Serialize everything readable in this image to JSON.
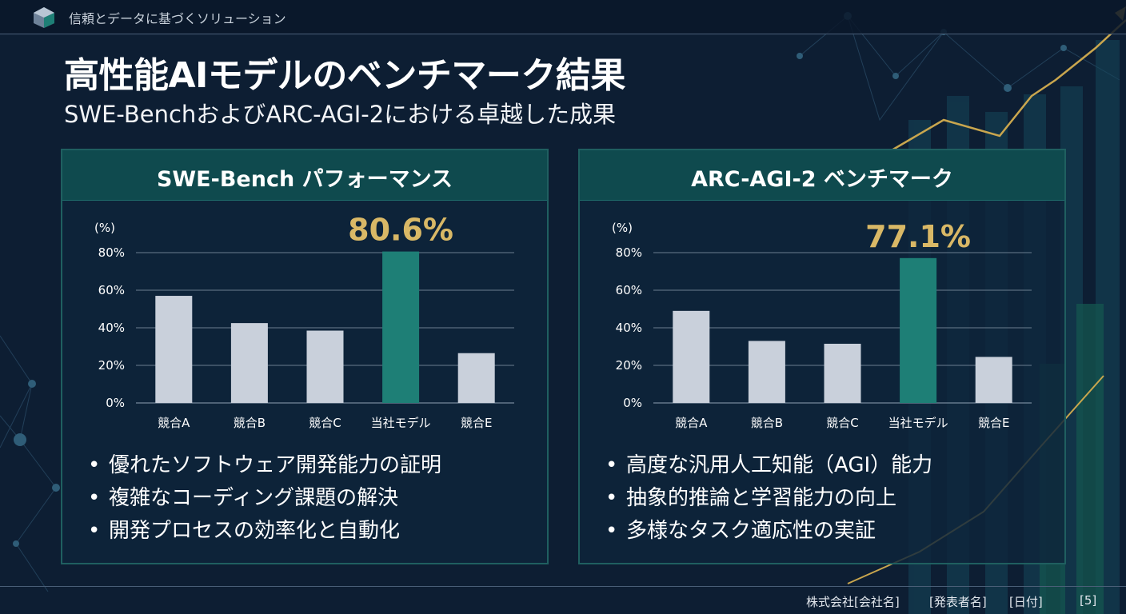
{
  "header": {
    "tagline": "信頼とデータに基づくソリューション",
    "logo_icon": "cube-logo-icon"
  },
  "title": "高性能AIモデルのベンチマーク結果",
  "subtitle": "SWE-BenchおよびARC-AGI-2における卓越した成果",
  "colors": {
    "background": "#0d1e33",
    "panel_header": "#0f4a4e",
    "bar_default": "#c9d0db",
    "bar_highlight": "#1e7f76",
    "highlight_text": "#d9b866",
    "gold_line": "#c9a64e"
  },
  "panels": [
    {
      "title": "SWE-Bench パフォーマンス",
      "bullets": [
        "優れたソフトウェア開発能力の証明",
        "複雑なコーディング課題の解決",
        "開発プロセスの効率化と自動化"
      ]
    },
    {
      "title": "ARC-AGI-2 ベンチマーク",
      "bullets": [
        "高度な汎用人工知能（AGI）能力",
        "抽象的推論と学習能力の向上",
        "多様なタスク適応性の実証"
      ]
    }
  ],
  "bullet_symbol": "•",
  "chart_data": [
    {
      "type": "bar",
      "title": "SWE-Bench パフォーマンス",
      "unit_label": "(%)",
      "categories": [
        "競合A",
        "競合B",
        "競合C",
        "当社モデル",
        "競合E"
      ],
      "values": [
        57,
        42.5,
        38.5,
        80.6,
        26.5
      ],
      "highlight_index": 3,
      "highlight_label": "80.6%",
      "yticks": [
        "0%",
        "20%",
        "40%",
        "60%",
        "80%"
      ],
      "ylim": [
        0,
        80
      ],
      "grid": true
    },
    {
      "type": "bar",
      "title": "ARC-AGI-2 ベンチマーク",
      "unit_label": "(%)",
      "categories": [
        "競合A",
        "競合B",
        "競合C",
        "当社モデル",
        "競合E"
      ],
      "values": [
        49,
        33,
        31.5,
        77.1,
        24.5
      ],
      "highlight_index": 3,
      "highlight_label": "77.1%",
      "yticks": [
        "0%",
        "20%",
        "40%",
        "60%",
        "80%"
      ],
      "ylim": [
        0,
        80
      ],
      "grid": true
    }
  ],
  "footer": {
    "company": "株式会社[会社名]",
    "presenter": "[発表者名]",
    "date": "[日付]",
    "page": "[5]"
  }
}
